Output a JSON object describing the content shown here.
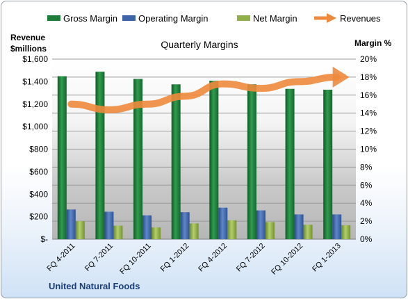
{
  "chart_data": {
    "type": "bar",
    "title": "Quarterly Margins",
    "company": "United Natural Foods",
    "left_axis_title_line1": "Revenue",
    "left_axis_title_line2": "$millions",
    "right_axis_title": "Margin %",
    "categories": [
      "FQ 4-2011",
      "FQ 7-2011",
      "FQ 10-2011",
      "FQ 1-2012",
      "FQ 4-2012",
      "FQ 7-2012",
      "FQ 10-2012",
      "FQ 1-2013"
    ],
    "left_ticks": [
      "$-",
      "$200",
      "$400",
      "$600",
      "$800",
      "$1,000",
      "$1,200",
      "$1,400",
      "$1,600"
    ],
    "right_ticks": [
      "0%",
      "2%",
      "4%",
      "6%",
      "8%",
      "10%",
      "12%",
      "14%",
      "16%",
      "18%",
      "20%"
    ],
    "ylim_left": [
      0,
      1600
    ],
    "ylim_right": [
      0,
      20
    ],
    "series": [
      {
        "name": "Gross Margin",
        "axis": "right",
        "color": "#1e7d3a",
        "values": [
          18.1,
          18.6,
          17.8,
          17.2,
          17.6,
          17.2,
          16.7,
          16.6
        ]
      },
      {
        "name": "Operating Margin",
        "axis": "right",
        "color": "#3d64a8",
        "values": [
          3.3,
          3.05,
          2.65,
          3.0,
          3.5,
          3.2,
          2.75,
          2.75
        ]
      },
      {
        "name": "Net Margin",
        "axis": "right",
        "color": "#8fb04a",
        "values": [
          2.0,
          1.5,
          1.3,
          1.75,
          2.1,
          1.9,
          1.6,
          1.55
        ]
      },
      {
        "name": "Revenues",
        "axis": "left",
        "color": "#ee8a3c",
        "type": "line",
        "values": [
          1200,
          1150,
          1200,
          1270,
          1380,
          1340,
          1400,
          1440
        ]
      }
    ]
  }
}
